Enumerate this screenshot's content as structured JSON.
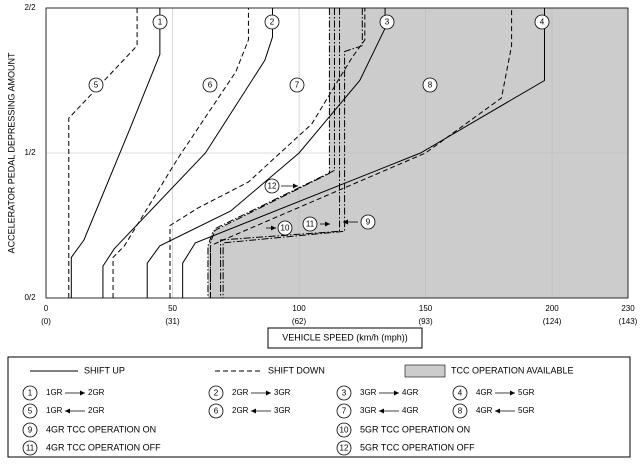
{
  "chart_data": {
    "type": "line",
    "ylabel": "ACCELERATOR PEDAL DEPRESSING AMOUNT",
    "xlabel": "VEHICLE SPEED (km/h (mph))",
    "xlim": [
      0,
      230
    ],
    "ylim": [
      0,
      1
    ],
    "xticks": [
      0,
      50,
      100,
      150,
      200,
      230
    ],
    "xticks_mph": [
      "(0)",
      "(31)",
      "(62)",
      "(93)",
      "(124)",
      "(143)"
    ],
    "yticks": [
      {
        "value": 0,
        "label": "0/2"
      },
      {
        "value": 0.5,
        "label": "1/2"
      },
      {
        "value": 1,
        "label": "2/2"
      }
    ],
    "grid": true,
    "tcc_region": {
      "color": "#cccccc",
      "x": [
        112,
        112,
        66,
        64,
        64,
        230,
        230
      ],
      "values": [
        1,
        0.43,
        0.23,
        0.18,
        0,
        0,
        1
      ]
    },
    "legend": {
      "shift_up": "SHIFT UP",
      "shift_down": "SHIFT DOWN",
      "tcc": "TCC OPERATION AVAILABLE"
    },
    "series": [
      {
        "name": "1",
        "from": "1GR",
        "to": "2GR",
        "direction": "up",
        "style": "solid",
        "color": "#000000",
        "x": [
          10,
          10,
          15,
          33,
          45,
          45
        ],
        "values": [
          0,
          0.14,
          0.2,
          0.58,
          0.84,
          1
        ]
      },
      {
        "name": "2",
        "from": "2GR",
        "to": "3GR",
        "direction": "up",
        "style": "solid",
        "color": "#000000",
        "x": [
          22.5,
          22.5,
          27,
          63,
          86.5,
          89.5,
          89.5
        ],
        "values": [
          0,
          0.11,
          0.17,
          0.5,
          0.82,
          0.9,
          1
        ]
      },
      {
        "name": "3",
        "from": "3GR",
        "to": "4GR",
        "direction": "up",
        "style": "solid",
        "color": "#000000",
        "x": [
          40,
          40,
          45,
          73,
          100,
          124,
          134,
          134
        ],
        "values": [
          0,
          0.12,
          0.18,
          0.3,
          0.5,
          0.75,
          0.93,
          1
        ]
      },
      {
        "name": "4",
        "from": "4GR",
        "to": "5GR",
        "direction": "up",
        "style": "solid",
        "color": "#000000",
        "x": [
          54,
          54,
          59,
          148,
          197,
          197
        ],
        "values": [
          0,
          0.12,
          0.19,
          0.5,
          0.75,
          1
        ]
      },
      {
        "name": "5",
        "from": "1GR",
        "to": "2GR",
        "direction": "down",
        "style": "dashed",
        "color": "#000000",
        "x": [
          9,
          9,
          36,
          36
        ],
        "values": [
          0,
          0.62,
          0.87,
          1
        ]
      },
      {
        "name": "6",
        "from": "2GR",
        "to": "3GR",
        "direction": "down",
        "style": "dashed",
        "color": "#000000",
        "x": [
          26.5,
          26.5,
          31,
          52,
          75,
          80,
          80
        ],
        "values": [
          0,
          0.14,
          0.18,
          0.48,
          0.78,
          0.89,
          1
        ]
      },
      {
        "name": "7",
        "from": "3GR",
        "to": "4GR",
        "direction": "down",
        "style": "dashed",
        "color": "#000000",
        "x": [
          49,
          49,
          60,
          80,
          105,
          121,
          126,
          126
        ],
        "values": [
          0,
          0.25,
          0.31,
          0.4,
          0.6,
          0.83,
          0.89,
          1
        ]
      },
      {
        "name": "8",
        "from": "4GR",
        "to": "5GR",
        "direction": "down",
        "style": "dashed",
        "color": "#000000",
        "x": [
          65,
          65,
          70,
          150,
          180,
          184,
          184
        ],
        "values": [
          0,
          0.18,
          0.2,
          0.5,
          0.69,
          0.87,
          1
        ]
      },
      {
        "name": "9",
        "label": "4GR TCC OPERATION ON",
        "style": "dashdot",
        "color": "#000000",
        "x": [
          116,
          116,
          69,
          69
        ],
        "values": [
          1,
          0.23,
          0.2,
          0
        ]
      },
      {
        "name": "10",
        "label": "5GR TCC OPERATION ON",
        "style": "dashdot",
        "color": "#000000",
        "x": [
          125,
          125,
          118,
          118,
          70,
          70
        ],
        "values": [
          1,
          0.87,
          0.85,
          0.23,
          0.19,
          0
        ]
      },
      {
        "name": "11",
        "label": "4GR TCC OPERATION OFF",
        "style": "dashdot",
        "color": "#000000",
        "x": [
          112,
          112,
          66,
          64,
          64
        ],
        "values": [
          1,
          0.43,
          0.23,
          0.18,
          0
        ]
      },
      {
        "name": "12",
        "label": "5GR TCC OPERATION OFF",
        "style": "dashdot",
        "color": "#000000",
        "x": [
          114,
          114,
          67,
          65,
          65
        ],
        "values": [
          1,
          0.44,
          0.24,
          0.19,
          0
        ]
      }
    ]
  }
}
